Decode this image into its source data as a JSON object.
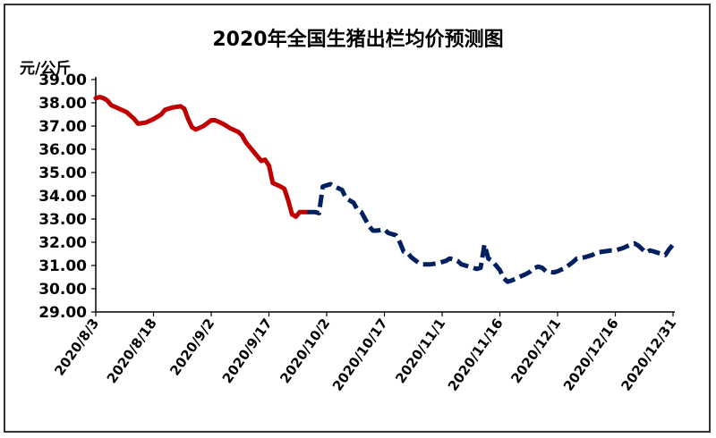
{
  "chart_data": {
    "type": "line",
    "title": "2020年全国生猪出栏均价预测图",
    "ylabel": "元/公斤",
    "xlabel": "",
    "ylim": [
      29.0,
      39.0
    ],
    "y_ticks": [
      "29.00",
      "30.00",
      "31.00",
      "32.00",
      "33.00",
      "34.00",
      "35.00",
      "36.00",
      "37.00",
      "38.00",
      "39.00"
    ],
    "x_ticks": [
      "2020/8/3",
      "2020/8/18",
      "2020/9/2",
      "2020/9/17",
      "2020/10/2",
      "2020/10/17",
      "2020/11/1",
      "2020/11/16",
      "2020/12/1",
      "2020/12/16",
      "2020/12/31"
    ],
    "grid": false,
    "series": [
      {
        "style": "solid",
        "color": "#c00000",
        "points": [
          [
            "2020/8/3",
            38.2
          ],
          [
            "2020/8/4",
            38.25
          ],
          [
            "2020/8/5",
            38.2
          ],
          [
            "2020/8/6",
            38.1
          ],
          [
            "2020/8/7",
            37.9
          ],
          [
            "2020/8/9",
            37.75
          ],
          [
            "2020/8/11",
            37.6
          ],
          [
            "2020/8/13",
            37.3
          ],
          [
            "2020/8/14",
            37.1
          ],
          [
            "2020/8/16",
            37.15
          ],
          [
            "2020/8/18",
            37.3
          ],
          [
            "2020/8/20",
            37.5
          ],
          [
            "2020/8/21",
            37.7
          ],
          [
            "2020/8/23",
            37.8
          ],
          [
            "2020/8/25",
            37.85
          ],
          [
            "2020/8/26",
            37.75
          ],
          [
            "2020/8/27",
            37.3
          ],
          [
            "2020/8/28",
            36.95
          ],
          [
            "2020/8/29",
            36.85
          ],
          [
            "2020/8/31",
            37.0
          ],
          [
            "2020/9/2",
            37.25
          ],
          [
            "2020/9/3",
            37.25
          ],
          [
            "2020/9/5",
            37.1
          ],
          [
            "2020/9/7",
            36.9
          ],
          [
            "2020/9/9",
            36.75
          ],
          [
            "2020/9/10",
            36.6
          ],
          [
            "2020/9/11",
            36.3
          ],
          [
            "2020/9/13",
            35.9
          ],
          [
            "2020/9/15",
            35.5
          ],
          [
            "2020/9/16",
            35.55
          ],
          [
            "2020/9/17",
            35.3
          ],
          [
            "2020/9/18",
            34.55
          ],
          [
            "2020/9/20",
            34.4
          ],
          [
            "2020/9/21",
            34.3
          ],
          [
            "2020/9/22",
            33.8
          ],
          [
            "2020/9/23",
            33.2
          ],
          [
            "2020/9/24",
            33.1
          ],
          [
            "2020/9/25",
            33.3
          ],
          [
            "2020/9/27",
            33.3
          ]
        ]
      },
      {
        "style": "dashed",
        "color": "#002060",
        "points": [
          [
            "2020/9/27",
            33.3
          ],
          [
            "2020/9/29",
            33.3
          ],
          [
            "2020/9/30",
            33.25
          ],
          [
            "2020/10/1",
            34.4
          ],
          [
            "2020/10/2",
            34.45
          ],
          [
            "2020/10/3",
            34.5
          ],
          [
            "2020/10/4",
            34.4
          ],
          [
            "2020/10/6",
            34.25
          ],
          [
            "2020/10/7",
            33.9
          ],
          [
            "2020/10/9",
            33.7
          ],
          [
            "2020/10/10",
            33.4
          ],
          [
            "2020/10/11",
            33.3
          ],
          [
            "2020/10/13",
            32.7
          ],
          [
            "2020/10/14",
            32.5
          ],
          [
            "2020/10/15",
            32.5
          ],
          [
            "2020/10/17",
            32.55
          ],
          [
            "2020/10/18",
            32.4
          ],
          [
            "2020/10/20",
            32.3
          ],
          [
            "2020/10/21",
            32.0
          ],
          [
            "2020/10/22",
            31.6
          ],
          [
            "2020/10/23",
            31.55
          ],
          [
            "2020/10/24",
            31.35
          ],
          [
            "2020/10/26",
            31.1
          ],
          [
            "2020/10/27",
            31.05
          ],
          [
            "2020/10/29",
            31.05
          ],
          [
            "2020/10/31",
            31.1
          ],
          [
            "2020/11/2",
            31.2
          ],
          [
            "2020/11/3",
            31.3
          ],
          [
            "2020/11/5",
            31.2
          ],
          [
            "2020/11/6",
            31.05
          ],
          [
            "2020/11/8",
            30.95
          ],
          [
            "2020/11/10",
            30.85
          ],
          [
            "2020/11/11",
            30.9
          ],
          [
            "2020/11/12",
            31.9
          ],
          [
            "2020/11/13",
            31.3
          ],
          [
            "2020/11/14",
            31.2
          ],
          [
            "2020/11/15",
            31.0
          ],
          [
            "2020/11/16",
            30.8
          ],
          [
            "2020/11/17",
            30.45
          ],
          [
            "2020/11/18",
            30.3
          ],
          [
            "2020/11/19",
            30.35
          ],
          [
            "2020/11/21",
            30.5
          ],
          [
            "2020/11/23",
            30.65
          ],
          [
            "2020/11/24",
            30.75
          ],
          [
            "2020/11/25",
            30.9
          ],
          [
            "2020/11/26",
            30.95
          ],
          [
            "2020/11/27",
            30.9
          ],
          [
            "2020/11/28",
            30.75
          ],
          [
            "2020/11/30",
            30.7
          ],
          [
            "2020/12/1",
            30.75
          ],
          [
            "2020/12/3",
            30.9
          ],
          [
            "2020/12/5",
            31.15
          ],
          [
            "2020/12/6",
            31.3
          ],
          [
            "2020/12/8",
            31.35
          ],
          [
            "2020/12/10",
            31.45
          ],
          [
            "2020/12/11",
            31.55
          ],
          [
            "2020/12/13",
            31.6
          ],
          [
            "2020/12/15",
            31.65
          ],
          [
            "2020/12/16",
            31.65
          ],
          [
            "2020/12/18",
            31.75
          ],
          [
            "2020/12/20",
            31.9
          ],
          [
            "2020/12/21",
            31.95
          ],
          [
            "2020/12/22",
            31.85
          ],
          [
            "2020/12/23",
            31.7
          ],
          [
            "2020/12/24",
            31.55
          ],
          [
            "2020/12/25",
            31.65
          ],
          [
            "2020/12/26",
            31.6
          ],
          [
            "2020/12/28",
            31.5
          ],
          [
            "2020/12/29",
            31.45
          ],
          [
            "2020/12/30",
            31.7
          ],
          [
            "2020/12/31",
            31.9
          ]
        ]
      }
    ]
  }
}
